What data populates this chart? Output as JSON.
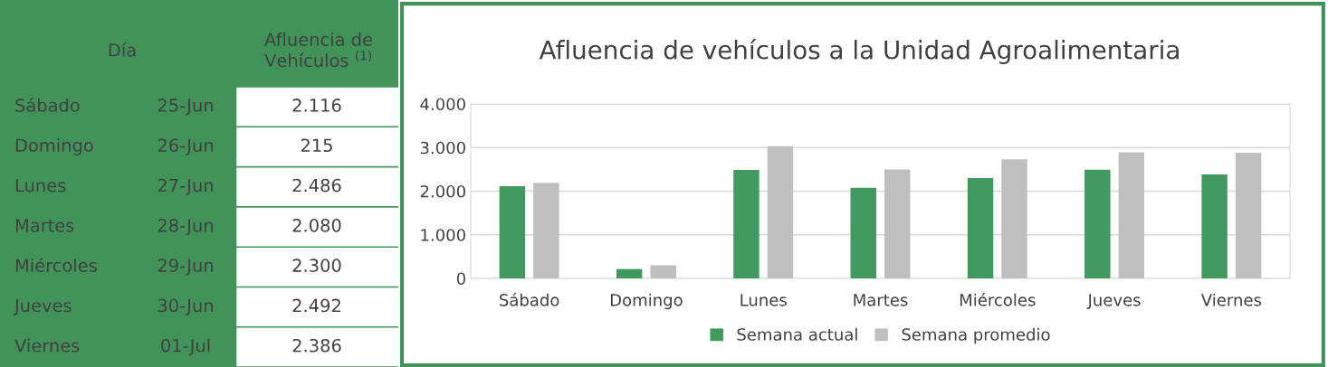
{
  "chart_data": [
    {
      "type": "other",
      "annotations": [
        "Día",
        "Afluencia de\nVehículos $^{(1)}$",
        "Sábado",
        "25-Jun",
        "2.116",
        "Domingo",
        "26-Jun",
        "215",
        "Lunes",
        "27-Jun",
        "2.486",
        "Martes",
        "28-Jun",
        "2.080",
        "Miércoles",
        "29-Jun",
        "2.300",
        "Jueves",
        "30-Jun",
        "2.492",
        "Viernes",
        "01-Jul",
        "2.386"
      ]
    },
    {
      "type": "bar",
      "title": "Afluencia de vehículos a la Unidad Agroalimentaria",
      "categories": [
        "Sábado",
        "Domingo",
        "Lunes",
        "Martes",
        "Miércoles",
        "Jueves",
        "Viernes"
      ],
      "series": [
        {
          "name": "Semana actual",
          "color": "#41995f",
          "values": [
            2116,
            215,
            2486,
            2080,
            2300,
            2492,
            2386
          ]
        },
        {
          "name": "Semana promedio",
          "color": "#bfbfbf",
          "values": [
            2190,
            300,
            3030,
            2500,
            2730,
            2890,
            2880
          ]
        }
      ],
      "ylim": [
        0,
        4000
      ],
      "yticks": [
        0,
        {
          "value": 1000,
          "label": "1.000"
        },
        {
          "value": 2000,
          "label": "2.000"
        },
        {
          "value": 3000,
          "label": "3.000"
        },
        {
          "value": 4000,
          "label": "4.000"
        }
      ],
      "grid": "y",
      "legend": "bottom"
    }
  ]
}
